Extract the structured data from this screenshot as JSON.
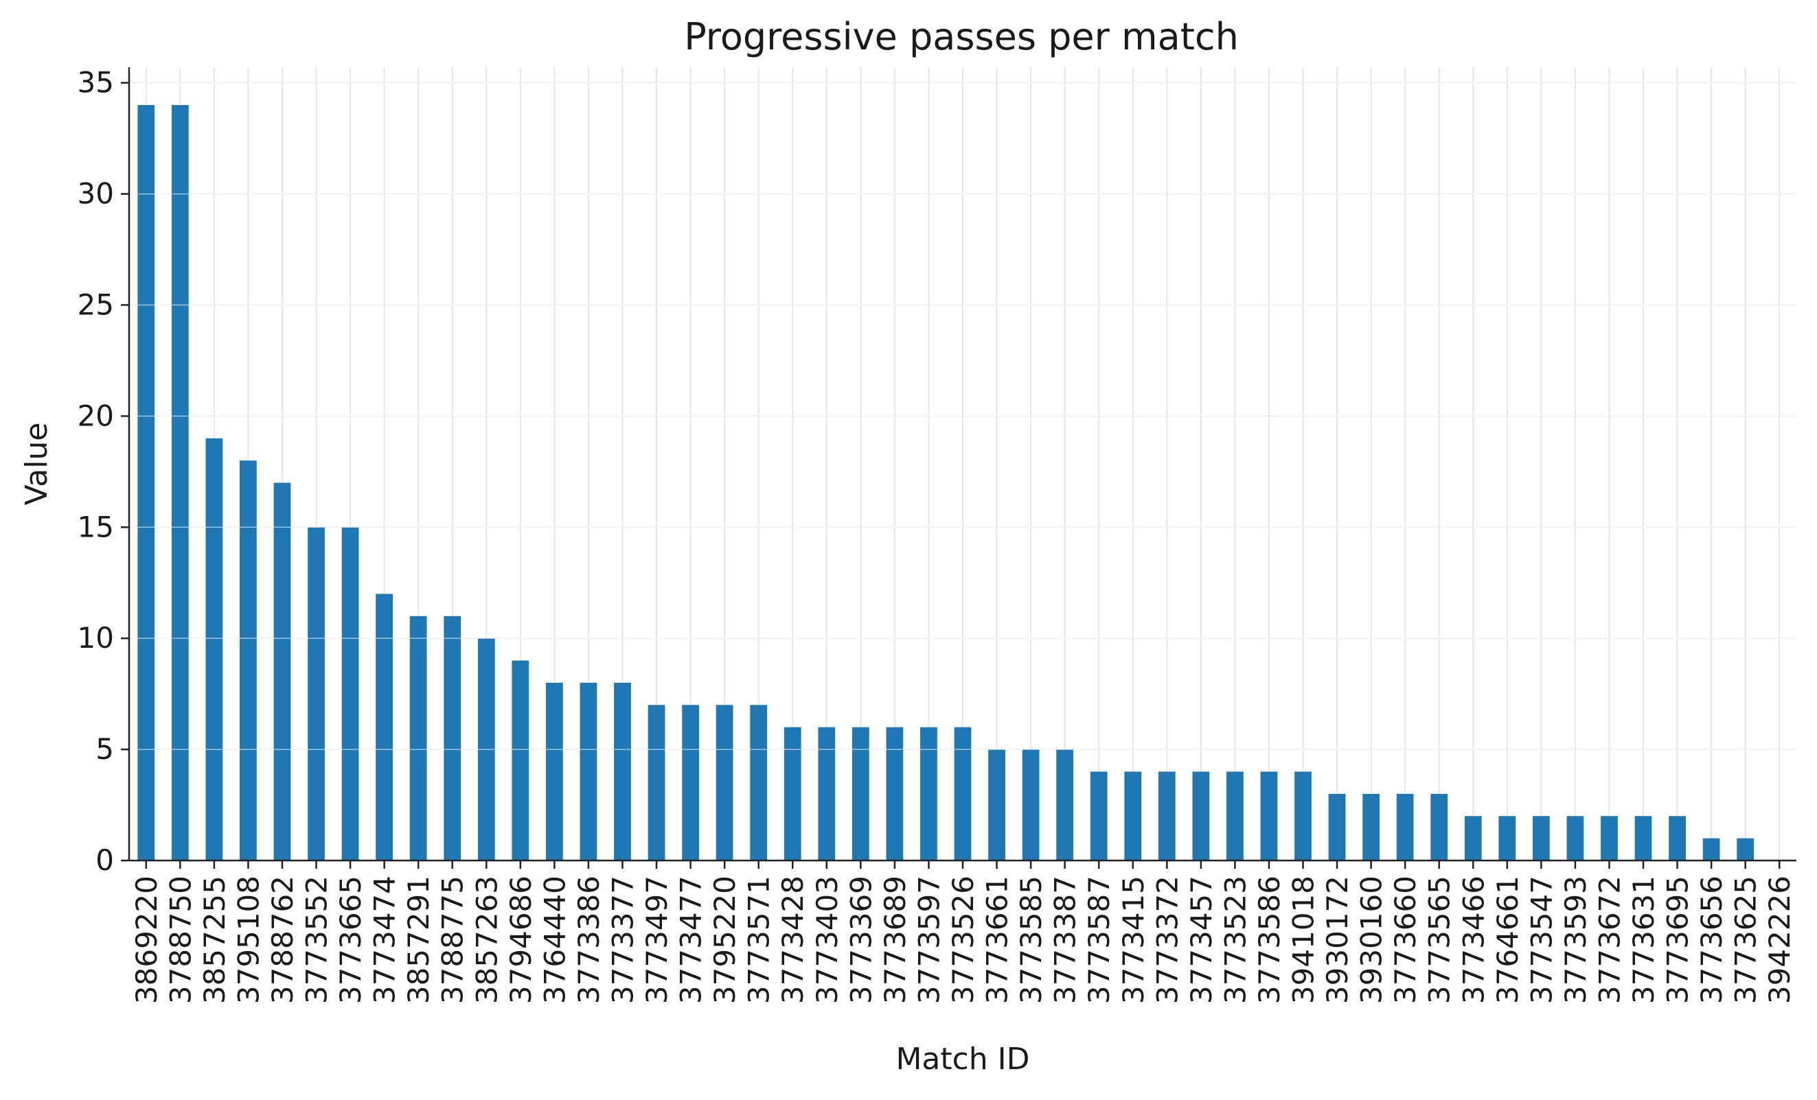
{
  "chart_data": {
    "type": "bar",
    "title": "Progressive passes per match",
    "xlabel": "Match ID",
    "ylabel": "Value",
    "ylim": [
      0,
      35.7
    ],
    "yticks": [
      0,
      5,
      10,
      15,
      20,
      25,
      30,
      35
    ],
    "grid": true,
    "bar_color": "#1f77b4",
    "categories": [
      "3869220",
      "3788750",
      "3857255",
      "3795108",
      "3788762",
      "3773552",
      "3773665",
      "3773474",
      "3857291",
      "3788775",
      "3857263",
      "3794686",
      "3764440",
      "3773386",
      "3773377",
      "3773497",
      "3773477",
      "3795220",
      "3773571",
      "3773428",
      "3773403",
      "3773369",
      "3773689",
      "3773597",
      "3773526",
      "3773661",
      "3773585",
      "3773387",
      "3773587",
      "3773415",
      "3773372",
      "3773457",
      "3773523",
      "3773586",
      "3941018",
      "3930172",
      "3930160",
      "3773660",
      "3773565",
      "3773466",
      "3764661",
      "3773547",
      "3773593",
      "3773672",
      "3773631",
      "3773695",
      "3773656",
      "3773625",
      "3942226"
    ],
    "values": [
      34,
      34,
      19,
      18,
      17,
      15,
      15,
      12,
      11,
      11,
      10,
      9,
      8,
      8,
      8,
      7,
      7,
      7,
      7,
      6,
      6,
      6,
      6,
      6,
      6,
      5,
      5,
      5,
      4,
      4,
      4,
      4,
      4,
      4,
      4,
      3,
      3,
      3,
      3,
      2,
      2,
      2,
      2,
      2,
      2,
      2,
      1,
      1,
      0
    ]
  }
}
